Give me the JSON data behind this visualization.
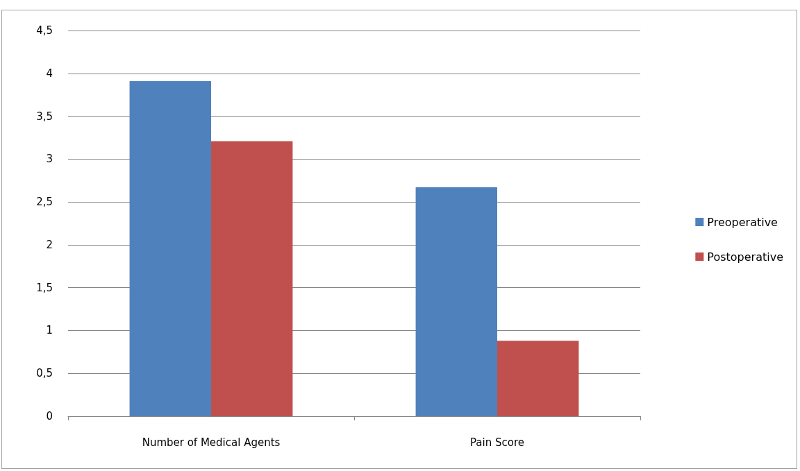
{
  "chart_data": {
    "type": "bar",
    "categories": [
      "Number of Medical Agents",
      "Pain Score"
    ],
    "series": [
      {
        "name": "Preoperative",
        "color": "#4f81bd",
        "values": [
          3.91,
          2.67
        ]
      },
      {
        "name": "Postoperative",
        "color": "#c0504d",
        "values": [
          3.21,
          0.88
        ]
      }
    ],
    "ylim": [
      0,
      4.5
    ],
    "yticks": [
      0,
      {
        "value": 0.5,
        "label": "0,5"
      },
      1,
      {
        "value": 1.5,
        "label": "1,5"
      },
      2,
      {
        "value": 2.5,
        "label": "2,5"
      },
      3,
      {
        "value": 3.5,
        "label": "3,5"
      },
      4,
      {
        "value": 4.5,
        "label": "4,5"
      }
    ],
    "grid": "y",
    "legend": "right"
  }
}
